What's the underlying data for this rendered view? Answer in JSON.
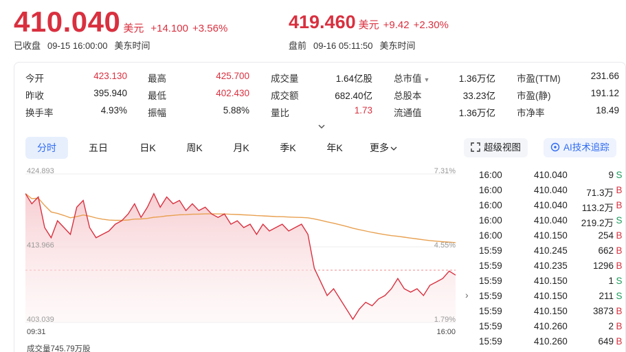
{
  "header": {
    "close_price": "410.040",
    "close_unit": "美元",
    "close_change": "+14.100",
    "close_change_pct": "+3.56%",
    "close_status": "已收盘",
    "close_time": "09-15 16:00:00",
    "close_tz": "美东时间",
    "pre_price": "419.460",
    "pre_unit": "美元",
    "pre_change": "+9.42",
    "pre_change_pct": "+2.30%",
    "pre_status": "盘前",
    "pre_time": "09-16 05:11:50",
    "pre_tz": "美东时间"
  },
  "stats": {
    "rows": [
      [
        {
          "label": "今开",
          "value": "423.130",
          "color": "red"
        },
        {
          "label": "最高",
          "value": "425.700",
          "color": "red"
        },
        {
          "label": "成交量",
          "value": "1.64亿股",
          "color": "black"
        },
        {
          "label": "总市值",
          "value": "1.36万亿",
          "color": "black"
        },
        {
          "label": "市盈(TTM)",
          "value": "231.66",
          "color": "black"
        }
      ],
      [
        {
          "label": "昨收",
          "value": "395.940",
          "color": "black"
        },
        {
          "label": "最低",
          "value": "402.430",
          "color": "red"
        },
        {
          "label": "成交额",
          "value": "682.40亿",
          "color": "black"
        },
        {
          "label": "总股本",
          "value": "33.23亿",
          "color": "black"
        },
        {
          "label": "市盈(静)",
          "value": "191.12",
          "color": "black"
        }
      ],
      [
        {
          "label": "换手率",
          "value": "4.93%",
          "color": "black"
        },
        {
          "label": "振幅",
          "value": "5.88%",
          "color": "black"
        },
        {
          "label": "量比",
          "value": "1.73",
          "color": "red"
        },
        {
          "label": "流通值",
          "value": "1.36万亿",
          "color": "black"
        },
        {
          "label": "市净率",
          "value": "18.49",
          "color": "black"
        }
      ]
    ]
  },
  "tabs": {
    "items": [
      "分时",
      "五日",
      "日K",
      "周K",
      "月K",
      "季K",
      "年K",
      "更多"
    ],
    "active": "分时",
    "super_view": "超级视图",
    "ai_track": "AI技术追踪"
  },
  "chart": {
    "y_top": "424.893",
    "y_mid": "413.966",
    "y_bot": "403.039",
    "pct_top": "7.31%",
    "pct_mid": "4.55%",
    "pct_bot": "1.79%",
    "x_start": "09:31",
    "x_end": "16:00",
    "volume_label": "成交量745.79万股",
    "line_color": "#d9303f",
    "avg_color": "#e8a050"
  },
  "chart_data": {
    "type": "line",
    "ylim": [
      403.039,
      424.893
    ],
    "series": [
      {
        "values": [
          422.0,
          420.5,
          421.5,
          417.0,
          415.5,
          418.0,
          417.0,
          416.0,
          420.0,
          421.0,
          417.0,
          415.5,
          416.0,
          416.5,
          417.5,
          418.0,
          419.0,
          420.5,
          418.5,
          420.0,
          422.0,
          420.0,
          421.5,
          420.5,
          421.0,
          419.5,
          420.5,
          419.5,
          420.0,
          419.0,
          418.5,
          419.0,
          417.5,
          418.0,
          417.0,
          417.5,
          416.0,
          417.5,
          416.5,
          417.0,
          417.5,
          416.5,
          417.0,
          417.5,
          416.0,
          411.0,
          409.0,
          407.0,
          408.0,
          406.5,
          405.0,
          403.5,
          405.0,
          406.0,
          405.5,
          406.5,
          407.0,
          408.0,
          409.5,
          408.0,
          407.5,
          408.0,
          407.0,
          408.5,
          409.0,
          409.5,
          410.6,
          410.0
        ]
      }
    ]
  },
  "trades": [
    {
      "time": "16:00",
      "price": "410.040",
      "vol": "9",
      "side": "S"
    },
    {
      "time": "16:00",
      "price": "410.040",
      "vol": "71.3万",
      "side": "B"
    },
    {
      "time": "16:00",
      "price": "410.040",
      "vol": "113.2万",
      "side": "B"
    },
    {
      "time": "16:00",
      "price": "410.040",
      "vol": "219.2万",
      "side": "S"
    },
    {
      "time": "16:00",
      "price": "410.150",
      "vol": "254",
      "side": "B"
    },
    {
      "time": "15:59",
      "price": "410.245",
      "vol": "662",
      "side": "B"
    },
    {
      "time": "15:59",
      "price": "410.235",
      "vol": "1296",
      "side": "B"
    },
    {
      "time": "15:59",
      "price": "410.150",
      "vol": "1",
      "side": "S"
    },
    {
      "time": "15:59",
      "price": "410.150",
      "vol": "211",
      "side": "S"
    },
    {
      "time": "15:59",
      "price": "410.150",
      "vol": "3873",
      "side": "B"
    },
    {
      "time": "15:59",
      "price": "410.260",
      "vol": "2",
      "side": "B"
    },
    {
      "time": "15:59",
      "price": "410.260",
      "vol": "649",
      "side": "B"
    }
  ]
}
